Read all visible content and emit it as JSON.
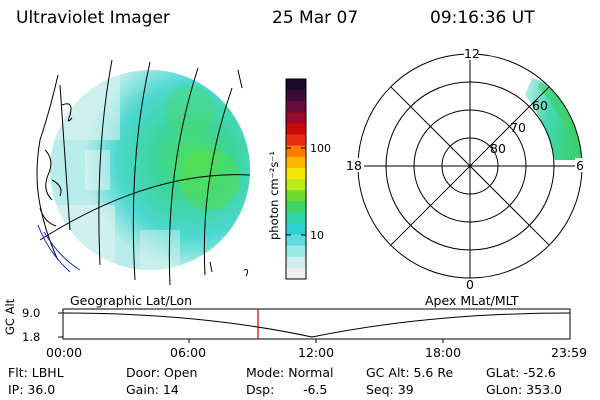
{
  "header": {
    "title": "Ultraviolet Imager",
    "date": "25 Mar 07",
    "time": "09:16:36 UT"
  },
  "colorbar": {
    "label": "photon cm⁻²s⁻¹",
    "ticks": [
      "100",
      "10"
    ],
    "colors": [
      "#1a0a2a",
      "#3a0a3a",
      "#6a0a3a",
      "#9a0a2a",
      "#c80a0a",
      "#e83010",
      "#ff7a00",
      "#ffb400",
      "#f5e600",
      "#b8ec1a",
      "#6ddc2a",
      "#3ed264",
      "#2fd6a4",
      "#2cd2d2",
      "#60dcdc",
      "#9ae8e4",
      "#cfeeee",
      "#eeeeee"
    ]
  },
  "polar": {
    "mlt_labels": [
      "12",
      "18",
      "6",
      "0"
    ],
    "mlat_labels": [
      "60",
      "70",
      "80"
    ]
  },
  "panels": {
    "left_label": "Geographic Lat/Lon",
    "right_label": "Apex MLat/MLT"
  },
  "altitude_plot": {
    "ylabel": "GC Alt",
    "y_ticks": [
      "9.0",
      "1.8"
    ],
    "x_ticks": [
      "00:00",
      "06:00",
      "12:00",
      "18:00",
      "23:59"
    ],
    "marker_color": "#cc0000"
  },
  "info": {
    "flt": "Flt: LBHL",
    "ip": "IP: 36.0",
    "door": "Door: Open",
    "gain": "Gain: 14",
    "mode": "Mode: Normal",
    "dsp_label": "Dsp:",
    "dsp_value": "-6.5",
    "gc_alt": "GC Alt: 5.6 Re",
    "seq": "Seq: 39",
    "glat": "GLat: -52.6",
    "glon": "GLon: 353.0"
  }
}
